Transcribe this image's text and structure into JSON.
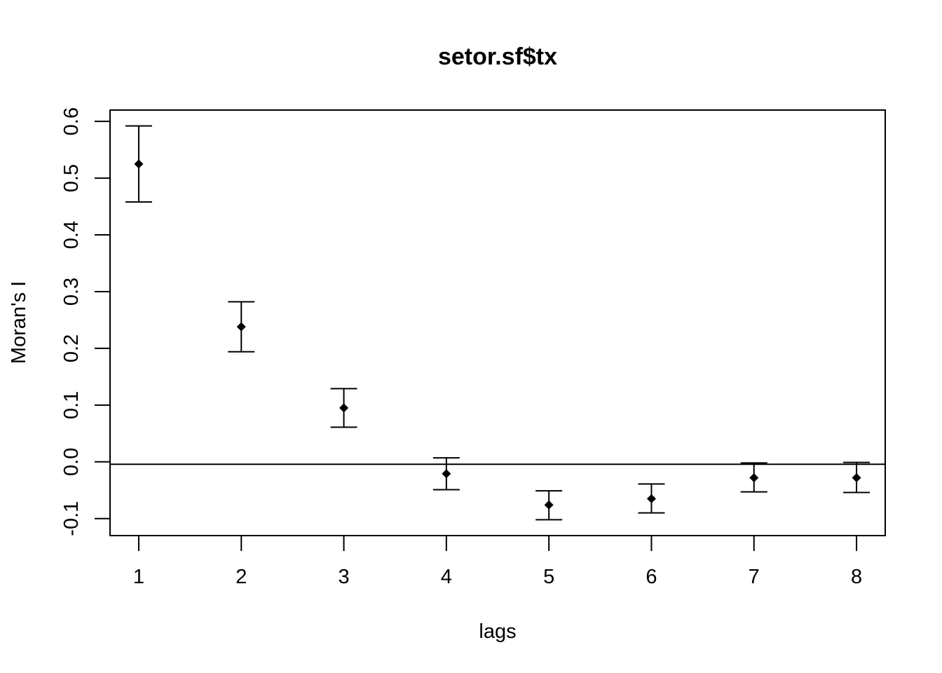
{
  "chart_data": {
    "type": "scatter",
    "title": "setor.sf$tx",
    "xlabel": "lags",
    "ylabel": "Moran's  I",
    "x": [
      1,
      2,
      3,
      4,
      5,
      6,
      7,
      8
    ],
    "series": [
      {
        "values": [
          0.525,
          0.238,
          0.095,
          -0.021,
          -0.076,
          -0.065,
          -0.028,
          -0.028
        ],
        "lower": [
          0.458,
          0.194,
          0.061,
          -0.049,
          -0.102,
          -0.09,
          -0.053,
          -0.054
        ],
        "upper": [
          0.592,
          0.282,
          0.129,
          0.007,
          -0.051,
          -0.039,
          -0.002,
          -0.001
        ]
      }
    ],
    "reference_line": -0.0043,
    "xticks": [
      "1",
      "2",
      "3",
      "4",
      "5",
      "6",
      "7",
      "8"
    ],
    "yticks": [
      "-0.1",
      "0.0",
      "0.1",
      "0.2",
      "0.3",
      "0.4",
      "0.5",
      "0.6"
    ],
    "xlim": [
      0.72,
      8.28
    ],
    "ylim": [
      -0.13,
      0.62
    ],
    "grid": false,
    "legend": "none"
  }
}
